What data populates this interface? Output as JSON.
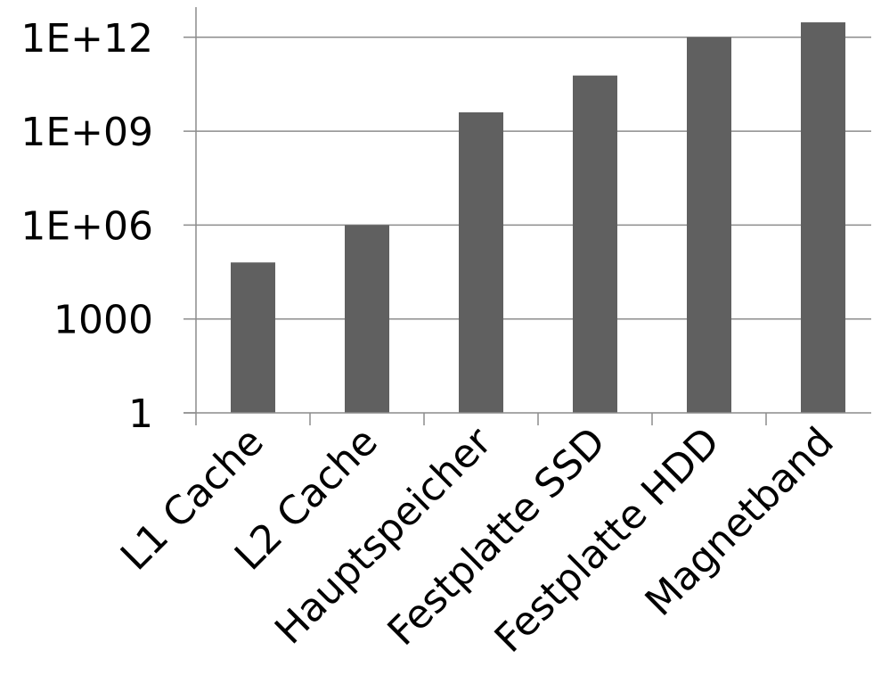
{
  "chart_data": {
    "type": "bar",
    "title": "",
    "xlabel": "",
    "ylabel": "",
    "y_scale": "log10",
    "ylim": [
      1,
      3000000000000
    ],
    "yticks": [
      {
        "value": 1,
        "label": "1"
      },
      {
        "value": 1000,
        "label": "1000"
      },
      {
        "value": 1000000,
        "label": "1E+06"
      },
      {
        "value": 1000000000,
        "label": "1E+09"
      },
      {
        "value": 1000000000000,
        "label": "1E+12"
      }
    ],
    "grid": true,
    "legend": "none",
    "categories": [
      "L1 Cache",
      "L2 Cache",
      "Hauptspeicher",
      "Festplatte SSD",
      "Festplatte HDD",
      "Magnetband"
    ],
    "values": [
      64000,
      1000000,
      4000000000,
      60000000000,
      1000000000000,
      3000000000000
    ],
    "bar_color": "#606060",
    "grid_color": "#8c8c8c"
  }
}
